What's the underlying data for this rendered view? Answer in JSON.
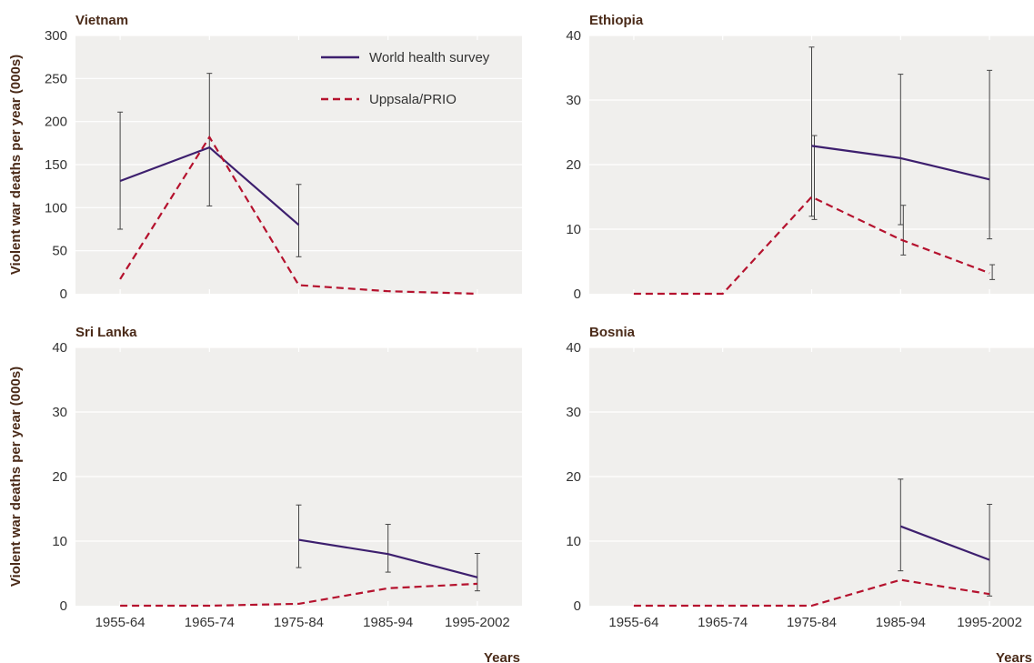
{
  "chart_data": [
    {
      "type": "line",
      "title": "Vietnam",
      "ylabel": "Violent war deaths per year (000s)",
      "xlabel": "",
      "categories": [
        "1955-64",
        "1965-74",
        "1975-84",
        "1985-94",
        "1995-2002"
      ],
      "ylim": [
        0,
        300
      ],
      "yticks": [
        0,
        50,
        100,
        150,
        200,
        250,
        300
      ],
      "show_x_tick_labels": false,
      "grid": true,
      "legend": "top-right",
      "series": [
        {
          "name": "World health survey",
          "color": "#3d1f6e",
          "style": "solid",
          "values": [
            131,
            170,
            80,
            null,
            null
          ],
          "errors": [
            [
              75,
              211
            ],
            [
              102,
              256
            ],
            [
              43,
              127
            ],
            null,
            null
          ]
        },
        {
          "name": "Uppsala/PRIO",
          "color": "#b5122e",
          "style": "dashed",
          "values": [
            17,
            182,
            10,
            3,
            0
          ],
          "errors": [
            null,
            null,
            null,
            null,
            null
          ]
        }
      ]
    },
    {
      "type": "line",
      "title": "Ethiopia",
      "ylabel": "",
      "xlabel": "",
      "categories": [
        "1955-64",
        "1965-74",
        "1975-84",
        "1985-94",
        "1995-2002"
      ],
      "ylim": [
        0,
        40
      ],
      "yticks": [
        0,
        10,
        20,
        30,
        40
      ],
      "show_x_tick_labels": false,
      "grid": true,
      "series": [
        {
          "name": "World health survey",
          "color": "#3d1f6e",
          "style": "solid",
          "values": [
            null,
            null,
            22.9,
            21.0,
            17.7
          ],
          "errors": [
            null,
            null,
            [
              12.0,
              38.2
            ],
            [
              10.7,
              34.0
            ],
            [
              8.5,
              34.6
            ]
          ]
        },
        {
          "name": "Uppsala/PRIO",
          "color": "#b5122e",
          "style": "dashed",
          "values": [
            0,
            0,
            15.0,
            8.4,
            3.2
          ],
          "errors": [
            null,
            null,
            [
              11.5,
              24.5
            ],
            [
              6.0,
              13.7
            ],
            [
              2.2,
              4.5
            ]
          ]
        }
      ]
    },
    {
      "type": "line",
      "title": "Sri Lanka",
      "ylabel": "Violent war deaths per year (000s)",
      "xlabel": "Years",
      "categories": [
        "1955-64",
        "1965-74",
        "1975-84",
        "1985-94",
        "1995-2002"
      ],
      "ylim": [
        0,
        40
      ],
      "yticks": [
        0,
        10,
        20,
        30,
        40
      ],
      "show_x_tick_labels": true,
      "grid": true,
      "series": [
        {
          "name": "World health survey",
          "color": "#3d1f6e",
          "style": "solid",
          "values": [
            null,
            null,
            10.2,
            8.0,
            4.4
          ],
          "errors": [
            null,
            null,
            [
              5.9,
              15.6
            ],
            [
              5.2,
              12.6
            ],
            [
              2.3,
              8.1
            ]
          ]
        },
        {
          "name": "Uppsala/PRIO",
          "color": "#b5122e",
          "style": "dashed",
          "values": [
            0,
            0,
            0.3,
            2.7,
            3.4
          ],
          "errors": [
            null,
            null,
            null,
            null,
            null
          ]
        }
      ]
    },
    {
      "type": "line",
      "title": "Bosnia",
      "ylabel": "",
      "xlabel": "Years",
      "categories": [
        "1955-64",
        "1965-74",
        "1975-84",
        "1985-94",
        "1995-2002"
      ],
      "ylim": [
        0,
        40
      ],
      "yticks": [
        0,
        10,
        20,
        30,
        40
      ],
      "show_x_tick_labels": true,
      "grid": true,
      "series": [
        {
          "name": "World health survey",
          "color": "#3d1f6e",
          "style": "solid",
          "values": [
            null,
            null,
            null,
            12.3,
            7.1
          ],
          "errors": [
            null,
            null,
            null,
            [
              5.4,
              19.6
            ],
            [
              1.5,
              15.7
            ]
          ]
        },
        {
          "name": "Uppsala/PRIO",
          "color": "#b5122e",
          "style": "dashed",
          "values": [
            0,
            0,
            0,
            4.0,
            1.8
          ],
          "errors": [
            null,
            null,
            null,
            null,
            null
          ]
        }
      ]
    }
  ],
  "colors": {
    "plot_background": "#f0efed",
    "gridline": "#ffffff",
    "title_text": "#4a2a18",
    "tick_text": "#333333",
    "error_bar": "#444444"
  }
}
